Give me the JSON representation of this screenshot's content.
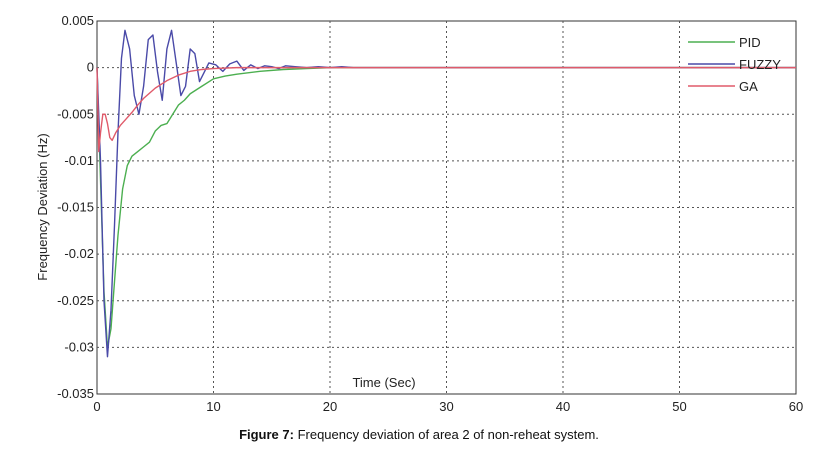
{
  "caption": {
    "label": "Figure 7:",
    "text": " Frequency deviation of area 2 of non-reheat system."
  },
  "chart_data": {
    "type": "line",
    "title": "",
    "xlabel": "Time (Sec)",
    "ylabel": "Frequency Deviation (Hz)",
    "xlim": [
      0,
      60
    ],
    "ylim": [
      -0.035,
      0.005
    ],
    "grid": true,
    "legend_position": "top-right",
    "x_ticks": [
      "0",
      "10",
      "20",
      "30",
      "40",
      "50",
      "60"
    ],
    "y_ticks": [
      "0.005",
      "0",
      "-0.005",
      "-0.01",
      "-0.015",
      "-0.02",
      "-0.025",
      "-0.03",
      "-0.035"
    ],
    "series": [
      {
        "name": "PID",
        "color": "#4caf50",
        "x": [
          0,
          0.3,
          0.6,
          0.9,
          1.2,
          1.5,
          1.8,
          2.2,
          2.6,
          3.0,
          3.5,
          4.0,
          4.5,
          5.0,
          5.5,
          6.0,
          6.5,
          7.0,
          7.5,
          8.0,
          8.5,
          9.0,
          10,
          11,
          12,
          14,
          16,
          18,
          20,
          25,
          30,
          40,
          50,
          60
        ],
        "y": [
          0,
          -0.012,
          -0.024,
          -0.03,
          -0.028,
          -0.023,
          -0.018,
          -0.013,
          -0.0105,
          -0.0095,
          -0.009,
          -0.0085,
          -0.008,
          -0.0068,
          -0.0062,
          -0.006,
          -0.005,
          -0.004,
          -0.0035,
          -0.0028,
          -0.0024,
          -0.002,
          -0.0012,
          -0.0009,
          -0.0007,
          -0.0004,
          -0.0002,
          -0.0001,
          0,
          0,
          0,
          0,
          0,
          0
        ]
      },
      {
        "name": "FUZZY",
        "color": "#4a4aa8",
        "x": [
          0,
          0.3,
          0.6,
          0.9,
          1.2,
          1.5,
          1.8,
          2.1,
          2.4,
          2.8,
          3.2,
          3.6,
          4.0,
          4.4,
          4.8,
          5.2,
          5.6,
          6.0,
          6.4,
          6.8,
          7.2,
          7.6,
          8.0,
          8.4,
          8.8,
          9.2,
          9.6,
          10.2,
          10.8,
          11.4,
          12.0,
          12.6,
          13.2,
          13.8,
          14.4,
          15.0,
          15.6,
          16.2,
          17.0,
          18.0,
          19.0,
          20.0,
          21.0,
          22.0,
          23.0,
          24.0,
          30,
          40,
          50,
          60
        ],
        "y": [
          0,
          -0.01,
          -0.025,
          -0.031,
          -0.026,
          -0.017,
          -0.007,
          0.001,
          0.004,
          0.002,
          -0.003,
          -0.005,
          -0.002,
          0.003,
          0.0035,
          -0.0005,
          -0.0035,
          0.002,
          0.004,
          0.0005,
          -0.003,
          -0.002,
          0.002,
          0.0015,
          -0.0015,
          -0.0005,
          0.0005,
          0.0003,
          -0.0004,
          0.0004,
          0.0007,
          -0.0003,
          0.0003,
          -0.0001,
          0.0002,
          0.0001,
          -0.0001,
          0.0002,
          0.0001,
          0,
          0.0001,
          0,
          0.0001,
          0,
          0,
          0,
          0,
          0,
          0,
          0
        ]
      },
      {
        "name": "GA",
        "color": "#e05a6a",
        "x": [
          0,
          0.15,
          0.3,
          0.5,
          0.7,
          0.9,
          1.1,
          1.3,
          1.6,
          2.0,
          2.5,
          3.0,
          3.5,
          4.0,
          5.0,
          6.0,
          7.0,
          8.0,
          9.0,
          10,
          12,
          15,
          20,
          30,
          40,
          50,
          60
        ],
        "y": [
          0,
          -0.009,
          -0.007,
          -0.005,
          -0.005,
          -0.006,
          -0.0075,
          -0.0078,
          -0.007,
          -0.0062,
          -0.0055,
          -0.0048,
          -0.004,
          -0.0033,
          -0.0022,
          -0.0014,
          -0.0008,
          -0.0004,
          -0.0002,
          -0.0001,
          0,
          0,
          0,
          0,
          0,
          0,
          0
        ]
      }
    ]
  }
}
